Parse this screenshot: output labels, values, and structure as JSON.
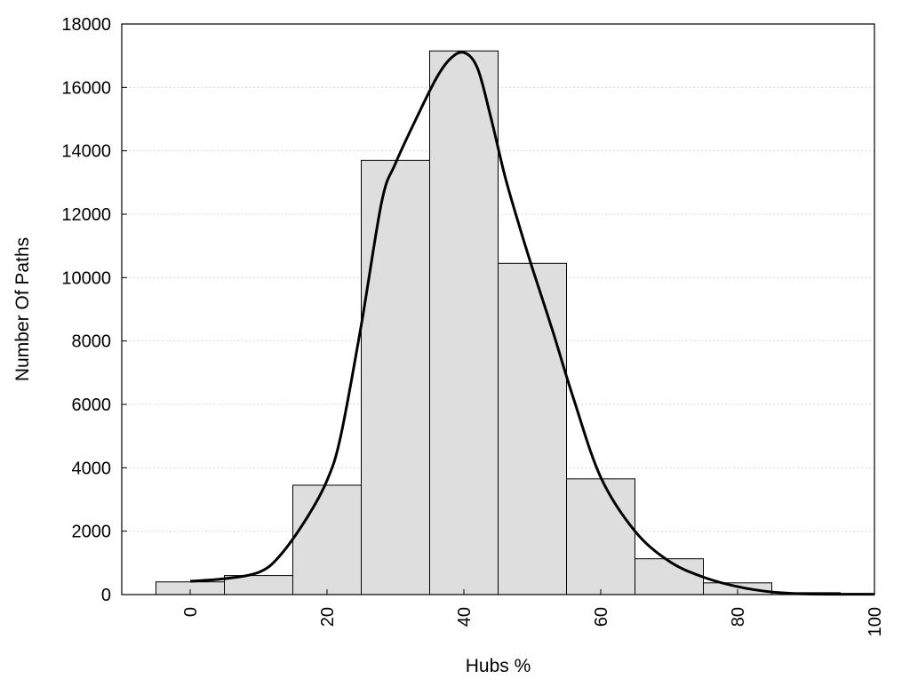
{
  "chart_data": {
    "type": "bar",
    "title": "",
    "xlabel": "Hubs %",
    "ylabel": "Number Of Paths",
    "xlim": [
      -10,
      100
    ],
    "ylim": [
      0,
      18000
    ],
    "x_ticks": [
      0,
      20,
      40,
      60,
      80,
      100
    ],
    "y_ticks": [
      0,
      2000,
      4000,
      6000,
      8000,
      10000,
      12000,
      14000,
      16000,
      18000
    ],
    "grid": "horizontal dotted",
    "legend": "none",
    "bin_width": 10,
    "bins": [
      {
        "center": 0,
        "value": 400
      },
      {
        "center": 10,
        "value": 600
      },
      {
        "center": 20,
        "value": 3450
      },
      {
        "center": 30,
        "value": 13700
      },
      {
        "center": 40,
        "value": 17150
      },
      {
        "center": 50,
        "value": 10450
      },
      {
        "center": 60,
        "value": 3650
      },
      {
        "center": 70,
        "value": 1130
      },
      {
        "center": 80,
        "value": 370
      },
      {
        "center": 90,
        "value": 60
      },
      {
        "center": 100,
        "value": 10
      }
    ],
    "density_curve": {
      "x": [
        0,
        5,
        10,
        13,
        17,
        20,
        22,
        25,
        28,
        30,
        33,
        36,
        38,
        40,
        42,
        44,
        46,
        48,
        50,
        53,
        56,
        60,
        65,
        70,
        75,
        80,
        85,
        90,
        95,
        100
      ],
      "y": [
        420,
        500,
        700,
        1200,
        2400,
        3600,
        5000,
        8500,
        12400,
        13600,
        15000,
        16300,
        16900,
        17100,
        16600,
        15000,
        13200,
        11700,
        10300,
        8300,
        6200,
        3700,
        2000,
        1050,
        550,
        250,
        80,
        20,
        10,
        10
      ]
    },
    "colors": {
      "bar_fill": "#dedede",
      "bar_edge": "#000000",
      "curve": "#000000",
      "grid": "#c8c8c8"
    }
  }
}
